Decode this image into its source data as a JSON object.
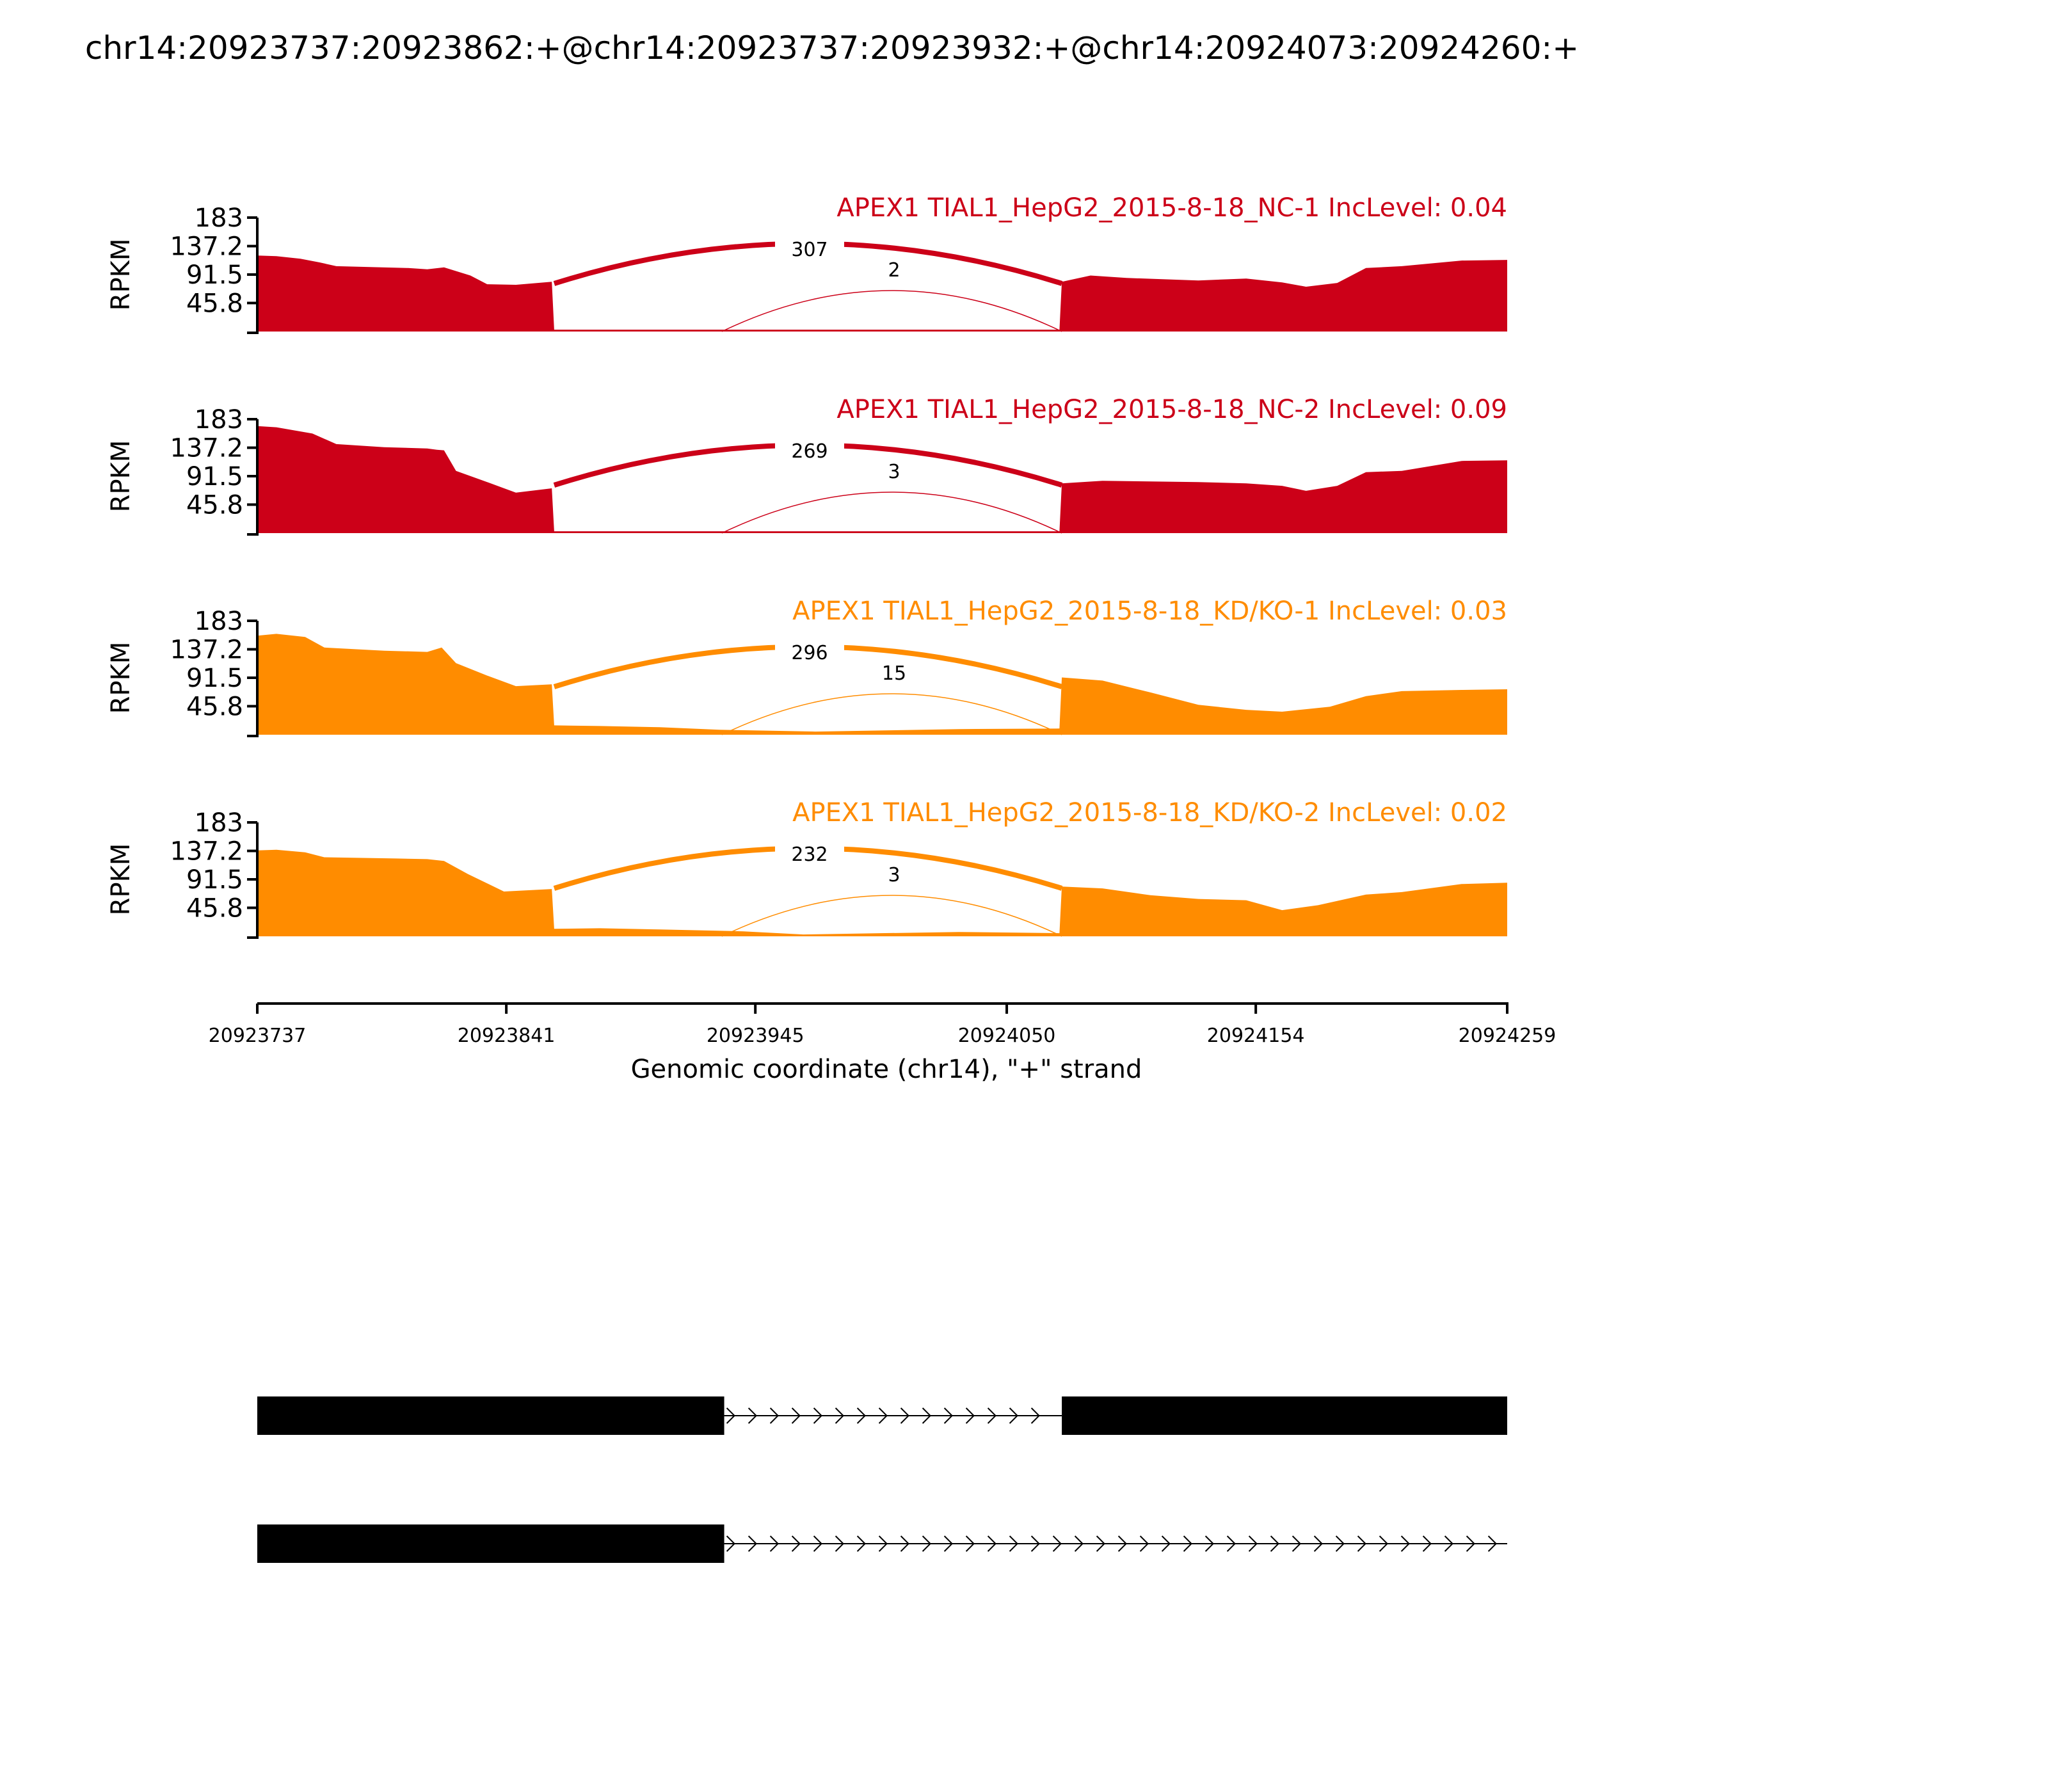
{
  "title": "chr14:20923737:20923862:+@chr14:20923737:20923932:+@chr14:20924073:20924260:+",
  "colors": {
    "nc": "#cc0018",
    "kd": "#ff8c00",
    "gene": "#000000"
  },
  "chart_data": {
    "type": "area",
    "title": "chr14:20923737:20923862:+@chr14:20923737:20923932:+@chr14:20924073:20924260:+",
    "xlabel": "Genomic coordinate (chr14), \"+\" strand",
    "ylabel": "RPKM",
    "xlim": [
      20923737,
      20924259
    ],
    "ylim": [
      0,
      183
    ],
    "x_ticks": [
      20923737,
      20923841,
      20923945,
      20924050,
      20924154,
      20924259
    ],
    "y_ticks": [
      45.8,
      91.5,
      137.2,
      183
    ],
    "grid": false,
    "tracks": [
      {
        "label": "APEX1 TIAL1_HepG2_2015-8-18_NC-1 IncLevel: 0.04",
        "group": "nc",
        "coverage": [
          [
            20923737,
            122
          ],
          [
            20923745,
            121
          ],
          [
            20923755,
            117
          ],
          [
            20923763,
            111
          ],
          [
            20923770,
            105
          ],
          [
            20923800,
            102
          ],
          [
            20923808,
            100
          ],
          [
            20923815,
            103
          ],
          [
            20923826,
            90
          ],
          [
            20923833,
            76
          ],
          [
            20923845,
            75
          ],
          [
            20923860,
            80
          ],
          [
            20923861,
            3
          ],
          [
            20923880,
            3
          ],
          [
            20923930,
            3
          ],
          [
            20924000,
            3
          ],
          [
            20924072,
            3
          ],
          [
            20924073,
            80
          ],
          [
            20924085,
            90
          ],
          [
            20924100,
            86
          ],
          [
            20924130,
            82
          ],
          [
            20924150,
            85
          ],
          [
            20924165,
            79
          ],
          [
            20924175,
            72
          ],
          [
            20924188,
            78
          ],
          [
            20924200,
            102
          ],
          [
            20924215,
            105
          ],
          [
            20924240,
            114
          ],
          [
            20924259,
            115
          ]
        ],
        "junctions": [
          {
            "start": 20923861,
            "end": 20924073,
            "count": "307"
          },
          {
            "start": 20923931,
            "end": 20924073,
            "count": "2"
          }
        ]
      },
      {
        "label": "APEX1 TIAL1_HepG2_2015-8-18_NC-2 IncLevel: 0.09",
        "group": "nc",
        "coverage": [
          [
            20923737,
            172
          ],
          [
            20923745,
            170
          ],
          [
            20923760,
            160
          ],
          [
            20923770,
            143
          ],
          [
            20923790,
            138
          ],
          [
            20923808,
            136
          ],
          [
            20923812,
            134
          ],
          [
            20923815,
            133
          ],
          [
            20923820,
            100
          ],
          [
            20923833,
            82
          ],
          [
            20923845,
            65
          ],
          [
            20923860,
            72
          ],
          [
            20923861,
            3
          ],
          [
            20923880,
            3
          ],
          [
            20923930,
            3
          ],
          [
            20924000,
            3
          ],
          [
            20924072,
            3
          ],
          [
            20924073,
            80
          ],
          [
            20924090,
            84
          ],
          [
            20924130,
            82
          ],
          [
            20924150,
            80
          ],
          [
            20924165,
            76
          ],
          [
            20924175,
            68
          ],
          [
            20924188,
            76
          ],
          [
            20924200,
            98
          ],
          [
            20924215,
            100
          ],
          [
            20924240,
            116
          ],
          [
            20924259,
            117
          ]
        ],
        "junctions": [
          {
            "start": 20923861,
            "end": 20924073,
            "count": "269"
          },
          {
            "start": 20923931,
            "end": 20924073,
            "count": "3"
          }
        ]
      },
      {
        "label": "APEX1 TIAL1_HepG2_2015-8-18_KD/KO-1 IncLevel: 0.03",
        "group": "kd",
        "coverage": [
          [
            20923737,
            159
          ],
          [
            20923745,
            162
          ],
          [
            20923757,
            157
          ],
          [
            20923765,
            140
          ],
          [
            20923790,
            135
          ],
          [
            20923808,
            133
          ],
          [
            20923814,
            140
          ],
          [
            20923820,
            115
          ],
          [
            20923833,
            95
          ],
          [
            20923845,
            78
          ],
          [
            20923860,
            81
          ],
          [
            20923861,
            15
          ],
          [
            20923880,
            14
          ],
          [
            20923905,
            12
          ],
          [
            20923930,
            8
          ],
          [
            20923970,
            5
          ],
          [
            20924030,
            9
          ],
          [
            20924072,
            10
          ],
          [
            20924073,
            92
          ],
          [
            20924090,
            87
          ],
          [
            20924110,
            68
          ],
          [
            20924130,
            48
          ],
          [
            20924150,
            40
          ],
          [
            20924165,
            37
          ],
          [
            20924185,
            45
          ],
          [
            20924200,
            62
          ],
          [
            20924215,
            70
          ],
          [
            20924240,
            72
          ],
          [
            20924259,
            73
          ]
        ],
        "junctions": [
          {
            "start": 20923861,
            "end": 20924073,
            "count": "296"
          },
          {
            "start": 20923931,
            "end": 20924073,
            "count": "15"
          }
        ]
      },
      {
        "label": "APEX1 TIAL1_HepG2_2015-8-18_KD/KO-2 IncLevel: 0.02",
        "group": "kd",
        "coverage": [
          [
            20923737,
            138
          ],
          [
            20923745,
            139
          ],
          [
            20923757,
            135
          ],
          [
            20923765,
            127
          ],
          [
            20923795,
            125
          ],
          [
            20923808,
            124
          ],
          [
            20923815,
            121
          ],
          [
            20923825,
            100
          ],
          [
            20923840,
            72
          ],
          [
            20923860,
            76
          ],
          [
            20923861,
            12
          ],
          [
            20923880,
            13
          ],
          [
            20923905,
            11
          ],
          [
            20923940,
            8
          ],
          [
            20923965,
            3
          ],
          [
            20924030,
            7
          ],
          [
            20924072,
            5
          ],
          [
            20924073,
            80
          ],
          [
            20924090,
            77
          ],
          [
            20924110,
            66
          ],
          [
            20924130,
            60
          ],
          [
            20924150,
            58
          ],
          [
            20924165,
            42
          ],
          [
            20924180,
            50
          ],
          [
            20924200,
            67
          ],
          [
            20924215,
            71
          ],
          [
            20924240,
            84
          ],
          [
            20924259,
            86
          ]
        ],
        "junctions": [
          {
            "start": 20923861,
            "end": 20924073,
            "count": "232"
          },
          {
            "start": 20923931,
            "end": 20924073,
            "count": "3"
          }
        ]
      }
    ],
    "gene_models": [
      {
        "exons": [
          [
            20923737,
            20923932
          ],
          [
            20924073,
            20924259
          ]
        ],
        "intron_end": 20924073
      },
      {
        "exons": [
          [
            20923737,
            20923932
          ]
        ],
        "intron_end": 20924259
      }
    ]
  }
}
